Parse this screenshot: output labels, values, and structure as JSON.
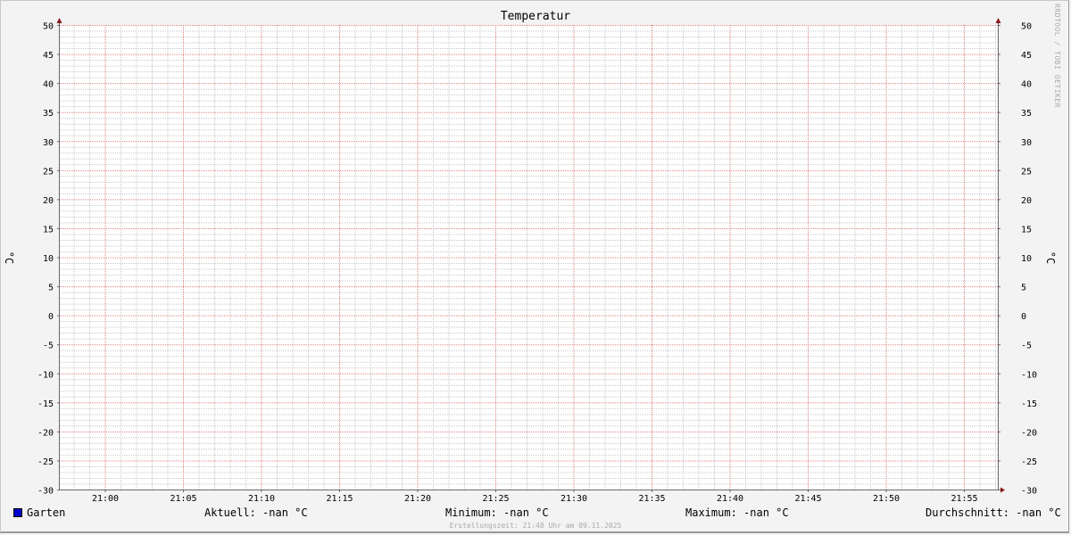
{
  "chart_data": {
    "type": "line",
    "title": "Temperatur",
    "ylabel": "°C",
    "ylim": [
      -30,
      50
    ],
    "y_ticks": [
      "50",
      "45",
      "40",
      "35",
      "30",
      "25",
      "20",
      "15",
      "10",
      "5",
      "0",
      "-5",
      "-10",
      "-15",
      "-20",
      "-25",
      "-30"
    ],
    "x_ticks": [
      "21:00",
      "21:05",
      "21:10",
      "21:15",
      "21:20",
      "21:25",
      "21:30",
      "21:35",
      "21:40",
      "21:45",
      "21:50",
      "21:55"
    ],
    "grid": true,
    "series": [
      {
        "name": "Garten",
        "color": "#0000cc",
        "values": []
      }
    ]
  },
  "legend": {
    "series_name": "Garten",
    "aktuell": "Aktuell: -nan °C",
    "minimum": "Minimum: -nan °C",
    "maximum": "Maximum: -nan °C",
    "durchschnitt": "Durchschnitt: -nan °C"
  },
  "footer": "Erstellungszeit: 21:48 Uhr am 09.11.2025",
  "watermark": "RRDTOOL / TOBI OETIKER",
  "colors": {
    "major_grid": "#e08080",
    "minor_grid": "#c8c8c8",
    "axis": "#6a6a6a",
    "arrow": "#8b1a1a"
  }
}
